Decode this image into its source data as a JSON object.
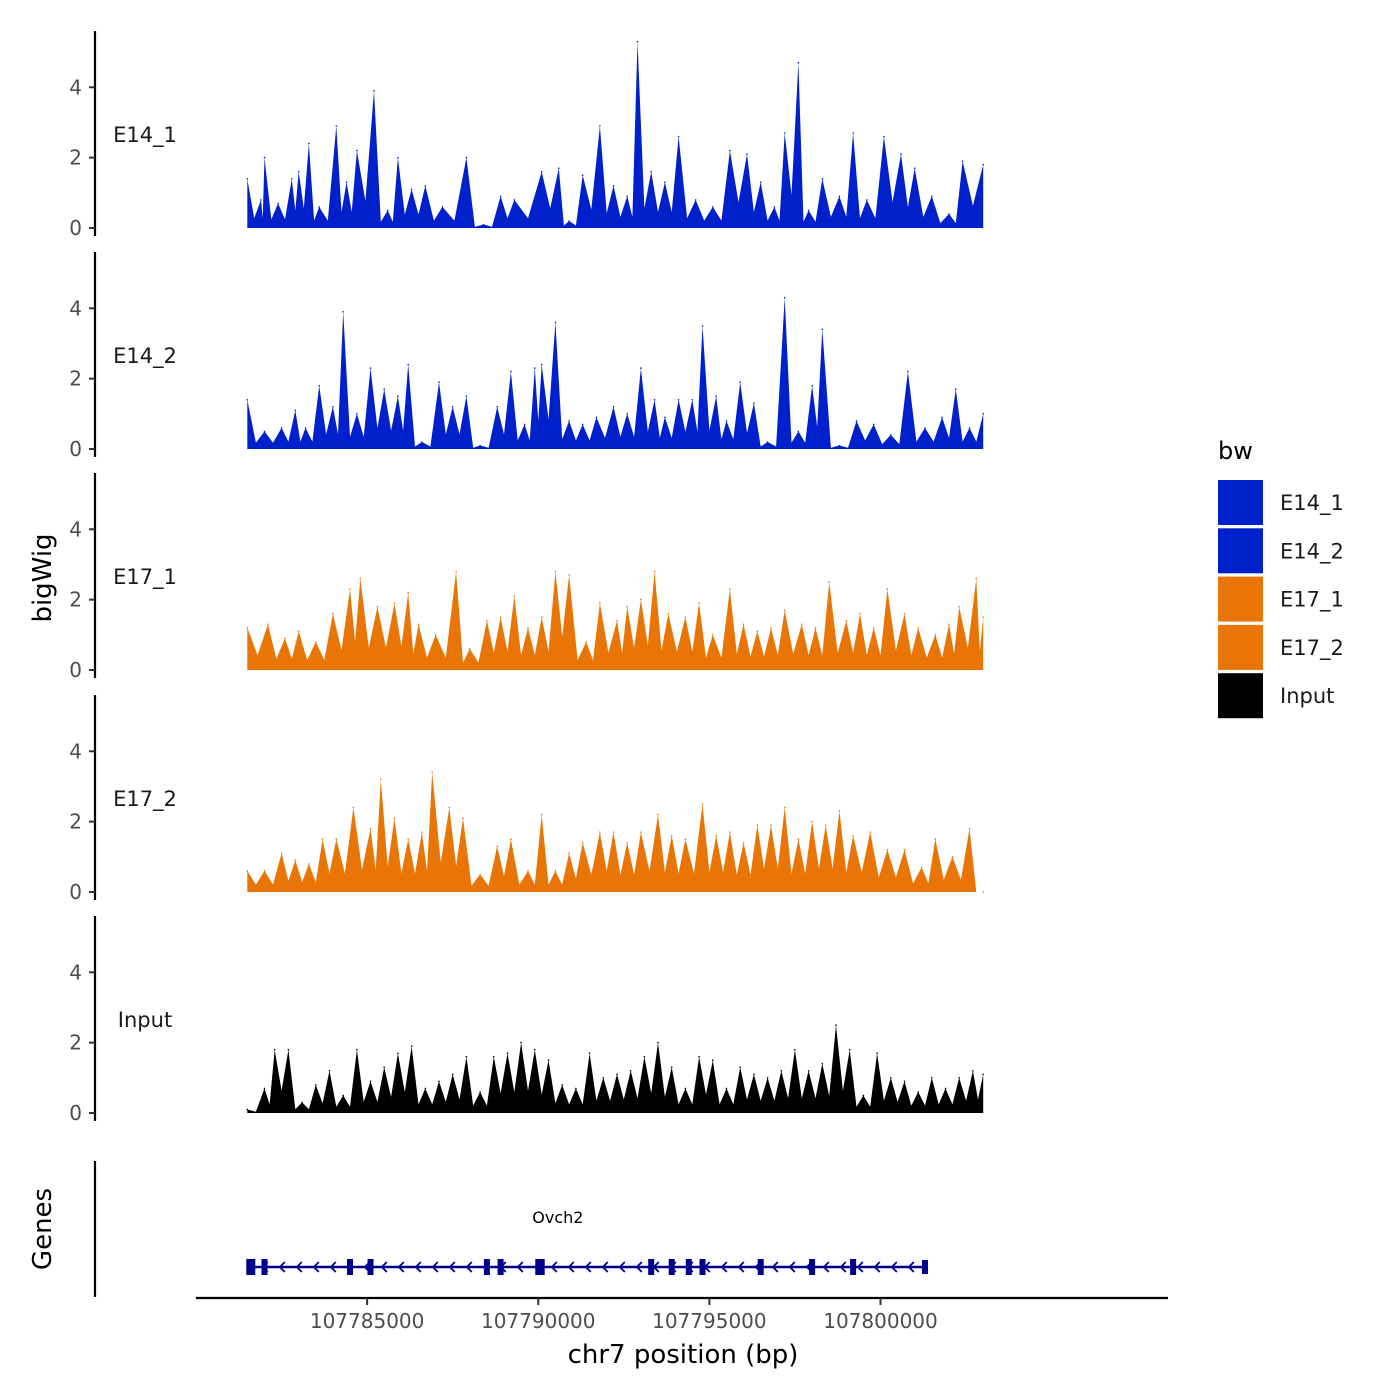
{
  "chart_data": {
    "type": "area",
    "chromosome": "chr7",
    "xlabel": "chr7 position (bp)",
    "ylabel": "bigWig",
    "genes_label": "Genes",
    "xlim": [
      107780000,
      107808400
    ],
    "x_ticks": [
      "107785000",
      "107790000",
      "107795000",
      "107800000"
    ],
    "ylim": [
      0,
      5.6
    ],
    "y_ticks": [
      "0",
      "2",
      "4"
    ],
    "region": [
      107781500,
      107803000
    ],
    "legend": {
      "title": "bw",
      "entries": [
        {
          "name": "E14_1",
          "color": "#0020CC"
        },
        {
          "name": "E14_2",
          "color": "#0020CC"
        },
        {
          "name": "E17_1",
          "color": "#E87505"
        },
        {
          "name": "E17_2",
          "color": "#E87505"
        },
        {
          "name": "Input",
          "color": "#000000"
        }
      ]
    },
    "series": [
      {
        "name": "E14_1",
        "color": "#0020CC",
        "peaks": [
          [
            107781500,
            1.4
          ],
          [
            107781900,
            0.8
          ],
          [
            107782000,
            2.0
          ],
          [
            107782400,
            0.7
          ],
          [
            107782800,
            1.4
          ],
          [
            107783000,
            1.6
          ],
          [
            107783300,
            2.4
          ],
          [
            107783600,
            0.6
          ],
          [
            107784100,
            2.9
          ],
          [
            107784400,
            1.3
          ],
          [
            107784700,
            2.2
          ],
          [
            107785200,
            3.9
          ],
          [
            107785600,
            0.5
          ],
          [
            107785900,
            2.0
          ],
          [
            107786300,
            1.1
          ],
          [
            107786700,
            1.2
          ],
          [
            107787200,
            0.6
          ],
          [
            107787900,
            2.0
          ],
          [
            107788400,
            0.1
          ],
          [
            107788900,
            0.9
          ],
          [
            107789300,
            0.8
          ],
          [
            107790100,
            1.6
          ],
          [
            107790600,
            1.7
          ],
          [
            107790900,
            0.2
          ],
          [
            107791300,
            1.5
          ],
          [
            107791800,
            2.9
          ],
          [
            107792200,
            1.2
          ],
          [
            107792600,
            0.9
          ],
          [
            107792900,
            5.3
          ],
          [
            107793300,
            1.6
          ],
          [
            107793700,
            1.3
          ],
          [
            107794100,
            2.6
          ],
          [
            107794600,
            0.8
          ],
          [
            107795100,
            0.6
          ],
          [
            107795600,
            2.2
          ],
          [
            107796100,
            2.1
          ],
          [
            107796500,
            1.3
          ],
          [
            107796900,
            0.6
          ],
          [
            107797200,
            2.7
          ],
          [
            107797600,
            4.7
          ],
          [
            107797900,
            0.5
          ],
          [
            107798300,
            1.4
          ],
          [
            107798800,
            0.9
          ],
          [
            107799200,
            2.7
          ],
          [
            107799600,
            0.8
          ],
          [
            107800100,
            2.6
          ],
          [
            107800600,
            2.1
          ],
          [
            107801000,
            1.7
          ],
          [
            107801500,
            0.9
          ],
          [
            107802000,
            0.4
          ],
          [
            107802400,
            1.9
          ],
          [
            107803000,
            1.8
          ]
        ]
      },
      {
        "name": "E14_2",
        "color": "#0020CC",
        "peaks": [
          [
            107781500,
            1.4
          ],
          [
            107782000,
            0.5
          ],
          [
            107782500,
            0.6
          ],
          [
            107782900,
            1.1
          ],
          [
            107783200,
            0.6
          ],
          [
            107783600,
            1.8
          ],
          [
            107784000,
            1.2
          ],
          [
            107784300,
            3.9
          ],
          [
            107784700,
            1.0
          ],
          [
            107785100,
            2.3
          ],
          [
            107785500,
            1.7
          ],
          [
            107785900,
            1.5
          ],
          [
            107786200,
            2.4
          ],
          [
            107786600,
            0.2
          ],
          [
            107787100,
            1.9
          ],
          [
            107787500,
            1.2
          ],
          [
            107787900,
            1.5
          ],
          [
            107788300,
            0.1
          ],
          [
            107788800,
            1.2
          ],
          [
            107789200,
            2.2
          ],
          [
            107789600,
            0.7
          ],
          [
            107789900,
            2.3
          ],
          [
            107790100,
            2.4
          ],
          [
            107790500,
            3.6
          ],
          [
            107790900,
            0.8
          ],
          [
            107791300,
            0.7
          ],
          [
            107791700,
            0.9
          ],
          [
            107792200,
            1.2
          ],
          [
            107792600,
            1.0
          ],
          [
            107793000,
            2.3
          ],
          [
            107793400,
            1.4
          ],
          [
            107793700,
            0.9
          ],
          [
            107794100,
            1.4
          ],
          [
            107794500,
            1.4
          ],
          [
            107794800,
            3.5
          ],
          [
            107795200,
            1.5
          ],
          [
            107795500,
            0.8
          ],
          [
            107795900,
            1.9
          ],
          [
            107796300,
            1.3
          ],
          [
            107796700,
            0.2
          ],
          [
            107797200,
            4.3
          ],
          [
            107797600,
            0.5
          ],
          [
            107798000,
            1.8
          ],
          [
            107798300,
            3.4
          ],
          [
            107798800,
            0.1
          ],
          [
            107799300,
            0.8
          ],
          [
            107799800,
            0.7
          ],
          [
            107800300,
            0.4
          ],
          [
            107800800,
            2.2
          ],
          [
            107801300,
            0.6
          ],
          [
            107801800,
            0.9
          ],
          [
            107802200,
            1.7
          ],
          [
            107802600,
            0.6
          ],
          [
            107803000,
            1.0
          ]
        ]
      },
      {
        "name": "E17_1",
        "color": "#E87505",
        "peaks": [
          [
            107781500,
            1.2
          ],
          [
            107782100,
            1.3
          ],
          [
            107782600,
            0.9
          ],
          [
            107783000,
            1.1
          ],
          [
            107783500,
            0.8
          ],
          [
            107784000,
            1.6
          ],
          [
            107784500,
            2.3
          ],
          [
            107784800,
            2.6
          ],
          [
            107785300,
            1.8
          ],
          [
            107785800,
            1.9
          ],
          [
            107786200,
            2.2
          ],
          [
            107786500,
            1.3
          ],
          [
            107787000,
            1.0
          ],
          [
            107787600,
            2.8
          ],
          [
            107788000,
            0.6
          ],
          [
            107788500,
            1.4
          ],
          [
            107788900,
            1.5
          ],
          [
            107789300,
            2.1
          ],
          [
            107789700,
            1.2
          ],
          [
            107790100,
            1.5
          ],
          [
            107790500,
            2.8
          ],
          [
            107790900,
            2.7
          ],
          [
            107791400,
            0.8
          ],
          [
            107791800,
            1.9
          ],
          [
            107792300,
            1.4
          ],
          [
            107792600,
            1.8
          ],
          [
            107793000,
            2.0
          ],
          [
            107793400,
            2.8
          ],
          [
            107793800,
            1.6
          ],
          [
            107794300,
            1.5
          ],
          [
            107794700,
            1.9
          ],
          [
            107795100,
            1.0
          ],
          [
            107795600,
            2.3
          ],
          [
            107796000,
            1.3
          ],
          [
            107796400,
            1.1
          ],
          [
            107796800,
            1.2
          ],
          [
            107797200,
            1.7
          ],
          [
            107797700,
            1.3
          ],
          [
            107798100,
            1.2
          ],
          [
            107798500,
            2.5
          ],
          [
            107799000,
            1.4
          ],
          [
            107799400,
            1.6
          ],
          [
            107799800,
            1.2
          ],
          [
            107800200,
            2.3
          ],
          [
            107800700,
            1.6
          ],
          [
            107801100,
            1.2
          ],
          [
            107801600,
            1.0
          ],
          [
            107802000,
            1.3
          ],
          [
            107802300,
            1.8
          ],
          [
            107802800,
            2.6
          ],
          [
            107803000,
            1.5
          ]
        ]
      },
      {
        "name": "E17_2",
        "color": "#E87505",
        "peaks": [
          [
            107781500,
            0.6
          ],
          [
            107782000,
            0.6
          ],
          [
            107782500,
            1.1
          ],
          [
            107782900,
            0.9
          ],
          [
            107783300,
            0.8
          ],
          [
            107783700,
            1.5
          ],
          [
            107784100,
            1.5
          ],
          [
            107784600,
            2.4
          ],
          [
            107785100,
            1.8
          ],
          [
            107785400,
            3.2
          ],
          [
            107785800,
            2.1
          ],
          [
            107786200,
            1.5
          ],
          [
            107786600,
            1.7
          ],
          [
            107786900,
            3.4
          ],
          [
            107787400,
            2.4
          ],
          [
            107787800,
            2.1
          ],
          [
            107788300,
            0.5
          ],
          [
            107788800,
            1.3
          ],
          [
            107789200,
            1.5
          ],
          [
            107789700,
            0.6
          ],
          [
            107790100,
            2.2
          ],
          [
            107790500,
            0.6
          ],
          [
            107790900,
            1.1
          ],
          [
            107791300,
            1.4
          ],
          [
            107791800,
            1.7
          ],
          [
            107792200,
            1.7
          ],
          [
            107792600,
            1.4
          ],
          [
            107793000,
            1.7
          ],
          [
            107793500,
            2.2
          ],
          [
            107793900,
            1.6
          ],
          [
            107794300,
            1.5
          ],
          [
            107794800,
            2.5
          ],
          [
            107795200,
            1.6
          ],
          [
            107795600,
            1.7
          ],
          [
            107796000,
            1.4
          ],
          [
            107796400,
            1.9
          ],
          [
            107796800,
            1.9
          ],
          [
            107797200,
            2.4
          ],
          [
            107797600,
            1.5
          ],
          [
            107798000,
            2.0
          ],
          [
            107798400,
            1.9
          ],
          [
            107798800,
            2.3
          ],
          [
            107799200,
            1.6
          ],
          [
            107799700,
            1.7
          ],
          [
            107800200,
            1.2
          ],
          [
            107800700,
            1.2
          ],
          [
            107801200,
            0.7
          ],
          [
            107801600,
            1.5
          ],
          [
            107802100,
            1.0
          ],
          [
            107802600,
            1.8
          ],
          [
            107803000,
            0.0
          ]
        ]
      },
      {
        "name": "Input",
        "color": "#000000",
        "peaks": [
          [
            107781500,
            0.1
          ],
          [
            107782000,
            0.7
          ],
          [
            107782300,
            1.8
          ],
          [
            107782700,
            1.8
          ],
          [
            107783100,
            0.3
          ],
          [
            107783500,
            0.8
          ],
          [
            107783900,
            1.2
          ],
          [
            107784300,
            0.5
          ],
          [
            107784700,
            1.8
          ],
          [
            107785100,
            0.9
          ],
          [
            107785500,
            1.3
          ],
          [
            107785900,
            1.7
          ],
          [
            107786300,
            1.9
          ],
          [
            107786700,
            0.7
          ],
          [
            107787100,
            0.9
          ],
          [
            107787500,
            1.1
          ],
          [
            107787900,
            1.6
          ],
          [
            107788300,
            0.6
          ],
          [
            107788700,
            1.6
          ],
          [
            107789100,
            1.7
          ],
          [
            107789500,
            2.0
          ],
          [
            107789900,
            1.8
          ],
          [
            107790300,
            1.5
          ],
          [
            107790700,
            0.8
          ],
          [
            107791100,
            0.7
          ],
          [
            107791500,
            1.7
          ],
          [
            107791900,
            1.0
          ],
          [
            107792300,
            1.1
          ],
          [
            107792700,
            1.2
          ],
          [
            107793100,
            1.6
          ],
          [
            107793500,
            2.0
          ],
          [
            107793900,
            1.3
          ],
          [
            107794300,
            0.7
          ],
          [
            107794700,
            1.6
          ],
          [
            107795100,
            1.5
          ],
          [
            107795500,
            0.7
          ],
          [
            107795900,
            1.3
          ],
          [
            107796300,
            1.1
          ],
          [
            107796700,
            1.0
          ],
          [
            107797100,
            1.2
          ],
          [
            107797500,
            1.8
          ],
          [
            107797900,
            1.2
          ],
          [
            107798300,
            1.4
          ],
          [
            107798700,
            2.5
          ],
          [
            107799100,
            1.8
          ],
          [
            107799500,
            0.5
          ],
          [
            107799900,
            1.7
          ],
          [
            107800300,
            1.0
          ],
          [
            107800700,
            0.9
          ],
          [
            107801100,
            0.6
          ],
          [
            107801500,
            1.0
          ],
          [
            107801900,
            0.7
          ],
          [
            107802300,
            1.0
          ],
          [
            107802700,
            1.2
          ],
          [
            107803000,
            1.1
          ]
        ]
      }
    ],
    "gene": {
      "name": "Ovch2",
      "start": 107781600,
      "end": 107801300,
      "strand": "-",
      "exons": [
        107781600,
        107782000,
        107784500,
        107785100,
        107788500,
        107788900,
        107790000,
        107790100,
        107793300,
        107793900,
        107794400,
        107794800,
        107796500,
        107798000,
        107799200,
        107801300
      ]
    }
  }
}
